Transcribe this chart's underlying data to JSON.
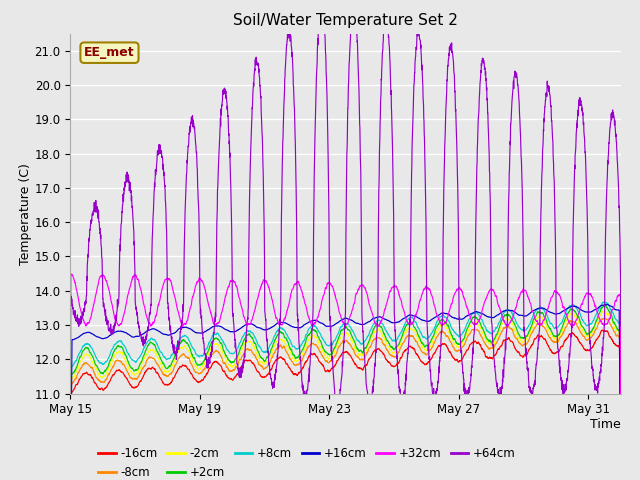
{
  "title": "Soil/Water Temperature Set 2",
  "xlabel": "Time",
  "ylabel": "Temperature (C)",
  "ylim": [
    11.0,
    21.5
  ],
  "yticks": [
    11.0,
    12.0,
    13.0,
    14.0,
    15.0,
    16.0,
    17.0,
    18.0,
    19.0,
    20.0,
    21.0
  ],
  "background_color": "#e8e8e8",
  "plot_bg_color": "#e8e8e8",
  "annotation_text": "EE_met",
  "annotation_bg": "#f5f5c0",
  "annotation_border": "#a08000",
  "series": [
    {
      "label": "-16cm",
      "color": "#ff0000"
    },
    {
      "label": "-8cm",
      "color": "#ff8800"
    },
    {
      "label": "-2cm",
      "color": "#ffff00"
    },
    {
      "label": "+2cm",
      "color": "#00cc00"
    },
    {
      "label": "+8cm",
      "color": "#00cccc"
    },
    {
      "label": "+16cm",
      "color": "#0000cc"
    },
    {
      "label": "+32cm",
      "color": "#ff00ff"
    },
    {
      "label": "+64cm",
      "color": "#9900cc"
    }
  ],
  "x_tick_labels": [
    "May 15",
    "May 19",
    "May 23",
    "May 27",
    "May 31"
  ],
  "n_days": 17,
  "n_pts_per_day": 144
}
